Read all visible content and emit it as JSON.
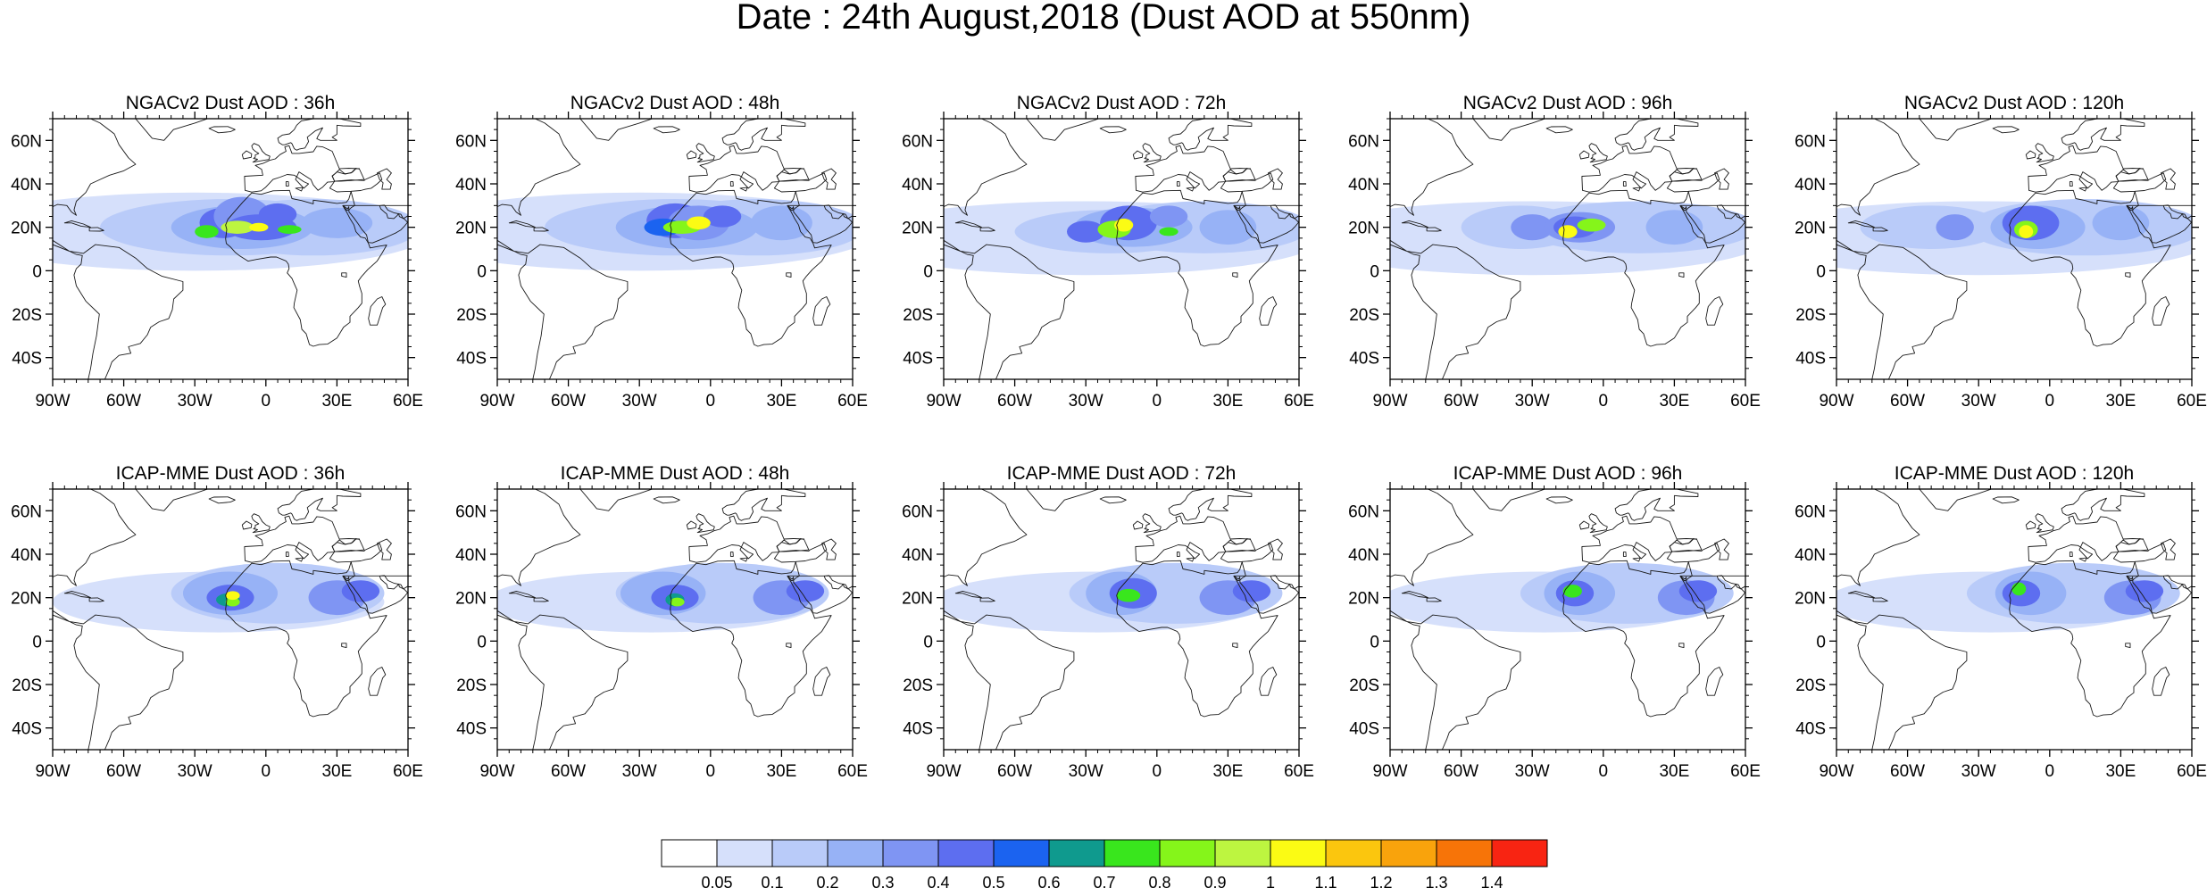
{
  "figure": {
    "title": "Date : 24th August,2018 (Dust AOD at 550nm)"
  },
  "lon_labels": [
    "90W",
    "60W",
    "30W",
    "0",
    "30E",
    "60E"
  ],
  "lat_labels": [
    "60N",
    "40N",
    "20N",
    "0",
    "20S",
    "40S"
  ],
  "panels": [
    {
      "title": "NGACv2 Dust AOD : 36h",
      "model": "NGACv2",
      "lead": "36h"
    },
    {
      "title": "NGACv2 Dust AOD : 48h",
      "model": "NGACv2",
      "lead": "48h"
    },
    {
      "title": "NGACv2 Dust AOD : 72h",
      "model": "NGACv2",
      "lead": "72h"
    },
    {
      "title": "NGACv2 Dust AOD : 96h",
      "model": "NGACv2",
      "lead": "96h"
    },
    {
      "title": "NGACv2 Dust AOD : 120h",
      "model": "NGACv2",
      "lead": "120h"
    },
    {
      "title": "ICAP-MME Dust AOD : 36h",
      "model": "ICAP-MME",
      "lead": "36h"
    },
    {
      "title": "ICAP-MME Dust AOD : 48h",
      "model": "ICAP-MME",
      "lead": "48h"
    },
    {
      "title": "ICAP-MME Dust AOD : 72h",
      "model": "ICAP-MME",
      "lead": "72h"
    },
    {
      "title": "ICAP-MME Dust AOD : 96h",
      "model": "ICAP-MME",
      "lead": "96h"
    },
    {
      "title": "ICAP-MME Dust AOD : 120h",
      "model": "ICAP-MME",
      "lead": "120h"
    }
  ],
  "colorbar": {
    "colors": [
      "#ffffff",
      "#d6e0fb",
      "#b9cbf9",
      "#97b2f6",
      "#7f95f3",
      "#5d6ef0",
      "#1b63f0",
      "#0f9a8e",
      "#39e61d",
      "#85f51a",
      "#bdf540",
      "#fbfb14",
      "#fbc60e",
      "#f9a30c",
      "#f77408",
      "#f82412"
    ],
    "ticks": [
      "0.05",
      "0.1",
      "0.2",
      "0.3",
      "0.4",
      "0.5",
      "0.6",
      "0.7",
      "0.8",
      "0.9",
      "1",
      "1.1",
      "1.2",
      "1.3",
      "1.4"
    ]
  }
}
